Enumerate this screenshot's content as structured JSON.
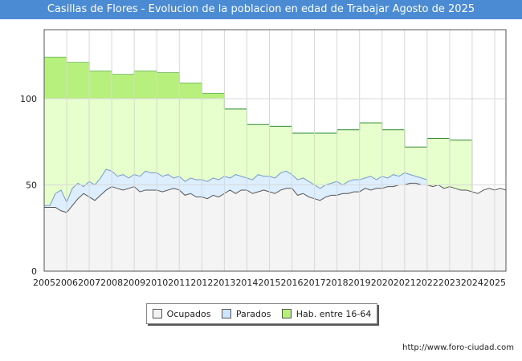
{
  "title": "Casillas de Flores - Evolucion de la poblacion en edad de Trabajar Agosto de 2025",
  "source_url": "http://www.foro-ciudad.com",
  "colors": {
    "hab_fill": "#e6ffcc",
    "hab_line": "#2e8b2e",
    "parados_fill": "#ddeeff",
    "parados_line": "#7799cc",
    "ocupados_fill": "#f4f4f4",
    "ocupados_line": "#555555",
    "title_bg": "#4a8bd4"
  },
  "legend": [
    {
      "label": "Ocupados",
      "color": "#f2f2f2"
    },
    {
      "label": "Parados",
      "color": "#cce4ff"
    },
    {
      "label": "Hab. entre 16-64",
      "color": "#b5f07a"
    }
  ],
  "chart_data": {
    "type": "area",
    "title": "Casillas de Flores - Evolucion de la poblacion en edad de Trabajar Agosto de 2025",
    "x_ticks": [
      "2005",
      "2006",
      "2007",
      "2008",
      "2009",
      "2010",
      "2011",
      "2012",
      "2013",
      "2014",
      "2015",
      "2016",
      "2017",
      "2018",
      "2019",
      "2020",
      "2021",
      "2022",
      "2023",
      "2024",
      "2025"
    ],
    "y_ticks": [
      0,
      50,
      100
    ],
    "ylim": [
      0,
      140
    ],
    "xlim": [
      2005,
      2025.5
    ],
    "grid": true,
    "series": [
      {
        "name": "Hab. entre 16-64",
        "x": [
          2005,
          2006,
          2007,
          2008,
          2009,
          2010,
          2011,
          2012,
          2013,
          2014,
          2015,
          2016,
          2017,
          2018,
          2019,
          2020,
          2021,
          2022,
          2023
        ],
        "values": [
          124,
          121,
          116,
          114,
          116,
          115,
          109,
          103,
          94,
          85,
          84,
          80,
          80,
          82,
          86,
          82,
          72,
          77,
          76
        ]
      },
      {
        "name": "Parados",
        "x": [
          2005.0,
          2005.25,
          2005.5,
          2005.75,
          2006.0,
          2006.25,
          2006.5,
          2006.75,
          2007.0,
          2007.25,
          2007.5,
          2007.75,
          2008.0,
          2008.25,
          2008.5,
          2008.75,
          2009.0,
          2009.25,
          2009.5,
          2009.75,
          2010.0,
          2010.25,
          2010.5,
          2010.75,
          2011.0,
          2011.25,
          2011.5,
          2011.75,
          2012.0,
          2012.25,
          2012.5,
          2012.75,
          2013.0,
          2013.25,
          2013.5,
          2013.75,
          2014.0,
          2014.25,
          2014.5,
          2014.75,
          2015.0,
          2015.25,
          2015.5,
          2015.75,
          2016.0,
          2016.25,
          2016.5,
          2016.75,
          2017.0,
          2017.25,
          2017.5,
          2017.75,
          2018.0,
          2018.25,
          2018.5,
          2018.75,
          2019.0,
          2019.25,
          2019.5,
          2019.75,
          2020.0,
          2020.25,
          2020.5,
          2020.75,
          2021.0,
          2021.25,
          2021.5,
          2021.75,
          2022.0
        ],
        "values": [
          38,
          38,
          45,
          47,
          40,
          48,
          51,
          49,
          52,
          50,
          54,
          59,
          58,
          55,
          56,
          54,
          56,
          55,
          58,
          57,
          57,
          55,
          56,
          54,
          55,
          52,
          54,
          53,
          53,
          52,
          54,
          53,
          55,
          54,
          56,
          55,
          54,
          53,
          56,
          55,
          55,
          54,
          57,
          58,
          56,
          53,
          54,
          52,
          50,
          48,
          50,
          51,
          52,
          50,
          52,
          53,
          53,
          54,
          55,
          53,
          55,
          54,
          56,
          55,
          57,
          56,
          55,
          54,
          53
        ]
      },
      {
        "name": "Ocupados",
        "x": [
          2005.0,
          2005.25,
          2005.5,
          2005.75,
          2006.0,
          2006.25,
          2006.5,
          2006.75,
          2007.0,
          2007.25,
          2007.5,
          2007.75,
          2008.0,
          2008.25,
          2008.5,
          2008.75,
          2009.0,
          2009.25,
          2009.5,
          2009.75,
          2010.0,
          2010.25,
          2010.5,
          2010.75,
          2011.0,
          2011.25,
          2011.5,
          2011.75,
          2012.0,
          2012.25,
          2012.5,
          2012.75,
          2013.0,
          2013.25,
          2013.5,
          2013.75,
          2014.0,
          2014.25,
          2014.5,
          2014.75,
          2015.0,
          2015.25,
          2015.5,
          2015.75,
          2016.0,
          2016.25,
          2016.5,
          2016.75,
          2017.0,
          2017.25,
          2017.5,
          2017.75,
          2018.0,
          2018.25,
          2018.5,
          2018.75,
          2019.0,
          2019.25,
          2019.5,
          2019.75,
          2020.0,
          2020.25,
          2020.5,
          2020.75,
          2021.0,
          2021.25,
          2021.5,
          2021.75,
          2022.0,
          2022.25,
          2022.5,
          2022.75,
          2023.0,
          2023.25,
          2023.5,
          2023.75,
          2024.0,
          2024.25,
          2024.5,
          2024.75,
          2025.0,
          2025.25,
          2025.5
        ],
        "values": [
          37,
          37,
          37,
          35,
          34,
          38,
          42,
          45,
          43,
          41,
          44,
          47,
          49,
          48,
          47,
          48,
          49,
          46,
          47,
          47,
          47,
          46,
          47,
          48,
          47,
          44,
          45,
          43,
          43,
          42,
          44,
          43,
          45,
          47,
          45,
          47,
          47,
          45,
          46,
          47,
          46,
          45,
          47,
          48,
          48,
          44,
          45,
          43,
          42,
          41,
          43,
          44,
          44,
          45,
          45,
          46,
          46,
          48,
          47,
          48,
          48,
          49,
          49,
          50,
          50,
          51,
          51,
          50,
          50,
          49,
          50,
          48,
          49,
          48,
          47,
          47,
          46,
          45,
          47,
          48,
          47,
          48,
          47
        ]
      }
    ]
  }
}
